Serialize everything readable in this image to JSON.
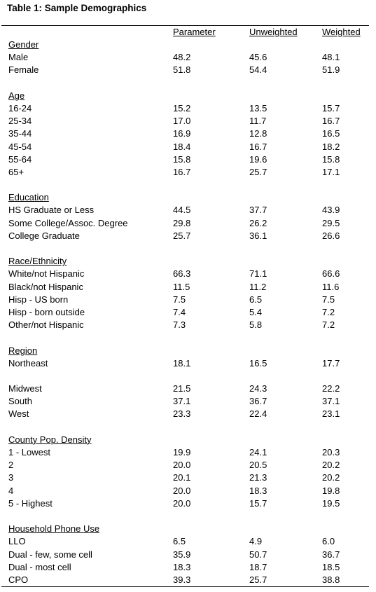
{
  "table": {
    "title": "Table 1: Sample Demographics",
    "columns": [
      "Parameter",
      "Unweighted",
      "Weighted"
    ],
    "sections": [
      {
        "heading": "Gender",
        "rows": [
          {
            "label": "Male",
            "values": [
              "48.2",
              "45.6",
              "48.1"
            ]
          },
          {
            "label": "Female",
            "values": [
              "51.8",
              "54.4",
              "51.9"
            ]
          }
        ]
      },
      {
        "heading": "Age",
        "rows": [
          {
            "label": "16-24",
            "values": [
              "15.2",
              "13.5",
              "15.7"
            ]
          },
          {
            "label": "25-34",
            "values": [
              "17.0",
              "11.7",
              "16.7"
            ]
          },
          {
            "label": "35-44",
            "values": [
              "16.9",
              "12.8",
              "16.5"
            ]
          },
          {
            "label": "45-54",
            "values": [
              "18.4",
              "16.7",
              "18.2"
            ]
          },
          {
            "label": "55-64",
            "values": [
              "15.8",
              "19.6",
              "15.8"
            ]
          },
          {
            "label": "65+",
            "values": [
              "16.7",
              "25.7",
              "17.1"
            ]
          }
        ]
      },
      {
        "heading": "Education",
        "rows": [
          {
            "label": "HS Graduate or Less",
            "values": [
              "44.5",
              "37.7",
              "43.9"
            ]
          },
          {
            "label": "Some College/Assoc. Degree",
            "values": [
              "29.8",
              "26.2",
              "29.5"
            ]
          },
          {
            "label": "College Graduate",
            "values": [
              "25.7",
              "36.1",
              "26.6"
            ]
          }
        ]
      },
      {
        "heading": "Race/Ethnicity",
        "rows": [
          {
            "label": "White/not Hispanic",
            "values": [
              "66.3",
              "71.1",
              "66.6"
            ]
          },
          {
            "label": "Black/not Hispanic",
            "values": [
              "11.5",
              "11.2",
              "11.6"
            ]
          },
          {
            "label": "Hisp - US born",
            "values": [
              "7.5",
              "6.5",
              "7.5"
            ]
          },
          {
            "label": "Hisp - born outside",
            "values": [
              "7.4",
              "5.4",
              "7.2"
            ]
          },
          {
            "label": "Other/not Hispanic",
            "values": [
              "7.3",
              "5.8",
              "7.2"
            ]
          }
        ]
      },
      {
        "heading": "Region",
        "rows": [
          {
            "label": "Northeast",
            "values": [
              "18.1",
              "16.5",
              "17.7"
            ]
          },
          {
            "label": "",
            "values": [
              "",
              "",
              ""
            ]
          },
          {
            "label": "Midwest",
            "values": [
              "21.5",
              "24.3",
              "22.2"
            ]
          },
          {
            "label": "South",
            "values": [
              "37.1",
              "36.7",
              "37.1"
            ]
          },
          {
            "label": "West",
            "values": [
              "23.3",
              "22.4",
              "23.1"
            ]
          }
        ]
      },
      {
        "heading": "County Pop. Density",
        "rows": [
          {
            "label": "1 - Lowest",
            "values": [
              "19.9",
              "24.1",
              "20.3"
            ]
          },
          {
            "label": "2",
            "values": [
              "20.0",
              "20.5",
              "20.2"
            ]
          },
          {
            "label": "3",
            "values": [
              "20.1",
              "21.3",
              "20.2"
            ]
          },
          {
            "label": "4",
            "values": [
              "20.0",
              "18.3",
              "19.8"
            ]
          },
          {
            "label": "5 - Highest",
            "values": [
              "20.0",
              "15.7",
              "19.5"
            ]
          }
        ]
      },
      {
        "heading": "Household Phone Use",
        "rows": [
          {
            "label": "LLO",
            "values": [
              "6.5",
              "4.9",
              "6.0"
            ]
          },
          {
            "label": "Dual - few, some cell",
            "values": [
              "35.9",
              "50.7",
              "36.7"
            ]
          },
          {
            "label": "Dual - most cell",
            "values": [
              "18.3",
              "18.7",
              "18.5"
            ]
          },
          {
            "label": "CPO",
            "values": [
              "39.3",
              "25.7",
              "38.8"
            ]
          }
        ]
      }
    ]
  }
}
